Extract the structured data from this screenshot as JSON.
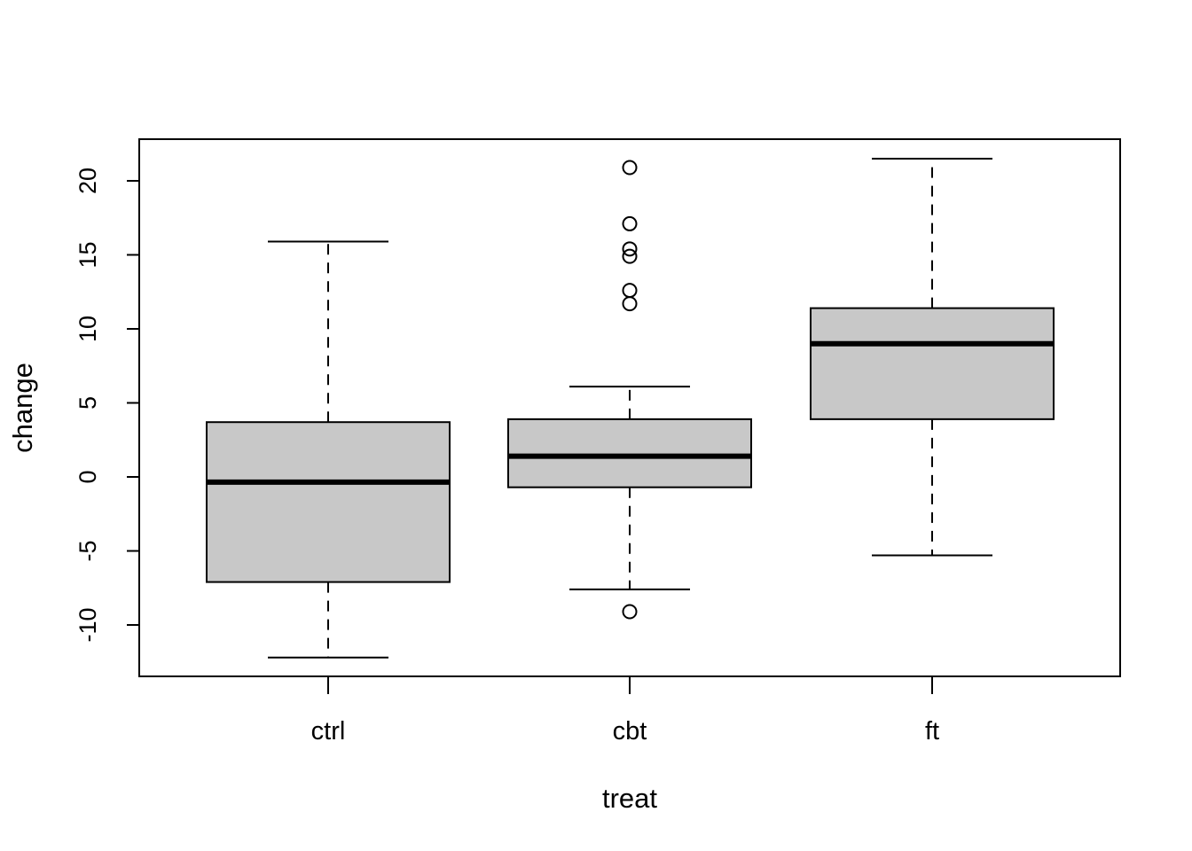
{
  "chart_data": {
    "type": "boxplot",
    "title": "",
    "xlabel": "treat",
    "ylabel": "change",
    "ylim": [
      -13.5,
      22.8
    ],
    "yticks": [
      -10,
      -5,
      0,
      5,
      10,
      15,
      20
    ],
    "ytick_labels": [
      "-10",
      "-5",
      "0",
      "5",
      "10",
      "15",
      "20"
    ],
    "categories": [
      "ctrl",
      "cbt",
      "ft"
    ],
    "boxes": [
      {
        "name": "ctrl",
        "whisker_low": -12.2,
        "q1": -7.1,
        "median": -0.35,
        "q3": 3.7,
        "whisker_high": 15.9,
        "outliers": []
      },
      {
        "name": "cbt",
        "whisker_low": -7.6,
        "q1": -0.7,
        "median": 1.4,
        "q3": 3.9,
        "whisker_high": 6.1,
        "outliers": [
          -9.1,
          11.7,
          12.6,
          14.9,
          15.4,
          17.1,
          20.9
        ]
      },
      {
        "name": "ft",
        "whisker_low": -5.3,
        "q1": 3.9,
        "median": 9.0,
        "q3": 11.4,
        "whisker_high": 21.5,
        "outliers": []
      }
    ],
    "box_fill": "#c8c8c8",
    "grid": false,
    "legend": "none"
  }
}
